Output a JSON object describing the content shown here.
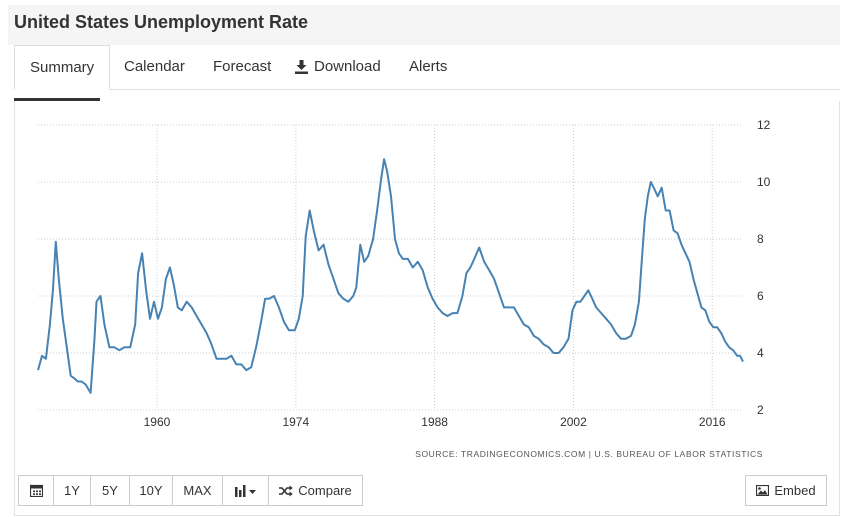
{
  "page": {
    "title": "United States Unemployment Rate"
  },
  "tabs": [
    {
      "label": "Summary"
    },
    {
      "label": "Calendar"
    },
    {
      "label": "Forecast"
    },
    {
      "label": "Download"
    },
    {
      "label": "Alerts"
    }
  ],
  "toolbar": {
    "range_buttons": [
      "1Y",
      "5Y",
      "10Y",
      "MAX"
    ],
    "compare_label": "Compare",
    "embed_label": "Embed"
  },
  "icons": {
    "download": "download-icon",
    "calendar": "calendar-icon",
    "chart_type": "bar-chart-icon",
    "compare": "shuffle-icon",
    "embed": "image-icon"
  },
  "colors": {
    "line": "#4682b4",
    "grid": "#cccccc",
    "tab_underline": "#333333"
  },
  "chart_data": {
    "type": "line",
    "title": "",
    "xlabel": "",
    "ylabel": "",
    "source": "SOURCE: TRADINGECONOMICS.COM | U.S. BUREAU OF LABOR STATISTICS",
    "x_ticks": [
      "1960",
      "1974",
      "1988",
      "2002",
      "2016"
    ],
    "y_ticks": [
      "2",
      "4",
      "6",
      "8",
      "10",
      "12"
    ],
    "xlim": [
      1948,
      2019.1
    ],
    "ylim": [
      2,
      12
    ],
    "y_axis_side": "right",
    "grid": true,
    "series": [
      {
        "name": "",
        "x": [
          1948.0,
          1948.4,
          1948.8,
          1949.2,
          1949.5,
          1949.8,
          1950.1,
          1950.5,
          1950.9,
          1951.3,
          1951.7,
          1952.0,
          1952.4,
          1952.8,
          1953.3,
          1953.7,
          1953.9,
          1954.3,
          1954.7,
          1955.2,
          1955.7,
          1956.2,
          1956.7,
          1957.3,
          1957.8,
          1958.1,
          1958.5,
          1958.9,
          1959.3,
          1959.7,
          1960.1,
          1960.5,
          1960.9,
          1961.3,
          1961.7,
          1962.1,
          1962.5,
          1963.0,
          1963.5,
          1964.0,
          1964.5,
          1965.0,
          1965.5,
          1966.0,
          1966.5,
          1967.0,
          1967.5,
          1968.0,
          1968.5,
          1969.0,
          1969.5,
          1970.0,
          1970.5,
          1970.9,
          1971.3,
          1971.8,
          1972.3,
          1972.8,
          1973.3,
          1973.9,
          1974.3,
          1974.7,
          1975.0,
          1975.4,
          1975.8,
          1976.3,
          1976.8,
          1977.3,
          1977.8,
          1978.3,
          1978.8,
          1979.3,
          1979.8,
          1980.1,
          1980.5,
          1980.9,
          1981.3,
          1981.8,
          1982.2,
          1982.6,
          1982.9,
          1983.2,
          1983.6,
          1984.0,
          1984.4,
          1984.8,
          1985.3,
          1985.8,
          1986.3,
          1986.8,
          1987.3,
          1987.8,
          1988.3,
          1988.8,
          1989.3,
          1989.8,
          1990.3,
          1990.8,
          1991.2,
          1991.6,
          1992.0,
          1992.5,
          1993.0,
          1993.5,
          1994.0,
          1994.5,
          1995.0,
          1995.5,
          1996.0,
          1996.5,
          1997.0,
          1997.5,
          1998.0,
          1998.5,
          1999.0,
          1999.5,
          2000.0,
          2000.5,
          2001.0,
          2001.5,
          2001.9,
          2002.3,
          2002.7,
          2003.1,
          2003.5,
          2003.9,
          2004.3,
          2004.8,
          2005.3,
          2005.8,
          2006.3,
          2006.8,
          2007.3,
          2007.8,
          2008.2,
          2008.6,
          2008.9,
          2009.2,
          2009.5,
          2009.8,
          2010.1,
          2010.5,
          2010.9,
          2011.3,
          2011.7,
          2012.1,
          2012.5,
          2012.9,
          2013.3,
          2013.7,
          2014.1,
          2014.5,
          2014.9,
          2015.3,
          2015.7,
          2016.1,
          2016.5,
          2016.9,
          2017.3,
          2017.7,
          2018.1,
          2018.5,
          2018.8,
          2019.1
        ],
        "values": [
          3.4,
          3.9,
          3.8,
          5.0,
          6.2,
          7.9,
          6.6,
          5.2,
          4.2,
          3.2,
          3.1,
          3.0,
          3.0,
          2.9,
          2.6,
          4.5,
          5.8,
          6.0,
          5.0,
          4.2,
          4.2,
          4.1,
          4.2,
          4.2,
          5.0,
          6.8,
          7.5,
          6.2,
          5.2,
          5.8,
          5.2,
          5.6,
          6.6,
          7.0,
          6.4,
          5.6,
          5.5,
          5.8,
          5.6,
          5.3,
          5.0,
          4.7,
          4.3,
          3.8,
          3.8,
          3.8,
          3.9,
          3.6,
          3.6,
          3.4,
          3.5,
          4.2,
          5.1,
          5.9,
          5.9,
          6.0,
          5.6,
          5.1,
          4.8,
          4.8,
          5.2,
          6.0,
          8.1,
          9.0,
          8.3,
          7.6,
          7.8,
          7.1,
          6.6,
          6.1,
          5.9,
          5.8,
          6.0,
          6.3,
          7.8,
          7.2,
          7.4,
          8.0,
          9.0,
          10.1,
          10.8,
          10.4,
          9.5,
          8.0,
          7.5,
          7.3,
          7.3,
          7.0,
          7.2,
          6.9,
          6.3,
          5.9,
          5.6,
          5.4,
          5.3,
          5.4,
          5.4,
          6.0,
          6.8,
          7.0,
          7.3,
          7.7,
          7.2,
          6.9,
          6.6,
          6.1,
          5.6,
          5.6,
          5.6,
          5.3,
          5.0,
          4.9,
          4.6,
          4.5,
          4.3,
          4.2,
          4.0,
          4.0,
          4.2,
          4.5,
          5.5,
          5.8,
          5.8,
          6.0,
          6.2,
          5.9,
          5.6,
          5.4,
          5.2,
          5.0,
          4.7,
          4.5,
          4.5,
          4.6,
          5.0,
          5.8,
          7.3,
          8.7,
          9.5,
          10.0,
          9.8,
          9.5,
          9.8,
          9.0,
          9.0,
          8.3,
          8.2,
          7.8,
          7.5,
          7.2,
          6.6,
          6.1,
          5.6,
          5.5,
          5.1,
          4.9,
          4.9,
          4.7,
          4.4,
          4.2,
          4.1,
          3.9,
          3.9,
          3.7
        ]
      }
    ]
  }
}
